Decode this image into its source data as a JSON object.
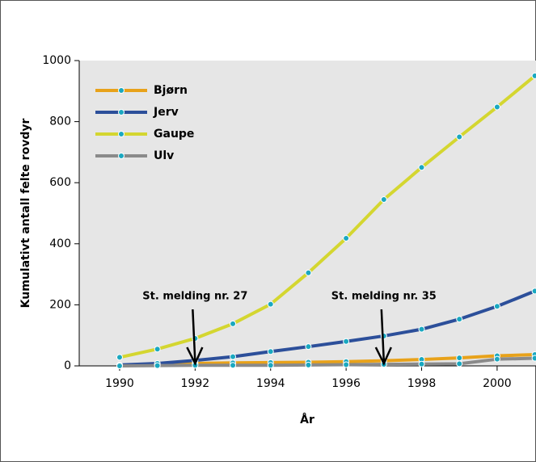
{
  "chart_data": {
    "type": "line",
    "x": [
      1990,
      1991,
      1992,
      1993,
      1994,
      1995,
      1996,
      1997,
      1998,
      1999,
      2000,
      2001
    ],
    "series": [
      {
        "name": "Bjørn",
        "color": "#e8a21a",
        "values": [
          0,
          5,
          8,
          10,
          11,
          12,
          14,
          17,
          21,
          26,
          33,
          37
        ]
      },
      {
        "name": "Jerv",
        "color": "#2c4f9a",
        "values": [
          3,
          8,
          18,
          30,
          47,
          63,
          80,
          98,
          120,
          153,
          195,
          245
        ]
      },
      {
        "name": "Gaupe",
        "color": "#d4d630",
        "values": [
          28,
          55,
          90,
          138,
          202,
          305,
          418,
          545,
          650,
          750,
          848,
          950
        ]
      },
      {
        "name": "Ulv",
        "color": "#8a8a8a",
        "values": [
          0,
          1,
          2,
          2,
          2,
          3,
          4,
          5,
          6,
          7,
          22,
          25
        ]
      }
    ],
    "marker_color": "#1aa8c0",
    "xlabel": "År",
    "ylabel": "Kumulativt antall felte rovdyr",
    "xlim": [
      1988.93,
      2001.03
    ],
    "xticks": [
      1990,
      1992,
      1994,
      1996,
      1998,
      2000
    ],
    "ylim": [
      0,
      1000
    ],
    "yticks": [
      0,
      200,
      400,
      600,
      800,
      1000
    ],
    "legend": "upper left",
    "annotations": [
      {
        "text": "St. melding nr. 27",
        "x": 1992
      },
      {
        "text": "St. melding nr. 35",
        "x": 1997
      }
    ]
  }
}
